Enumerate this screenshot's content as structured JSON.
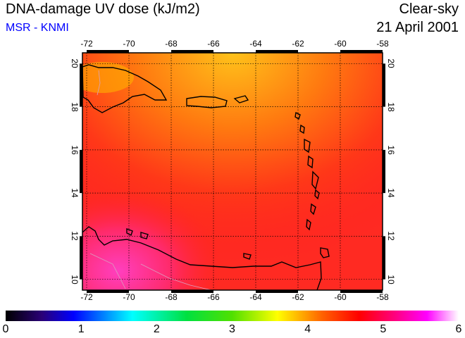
{
  "header": {
    "title": "DNA-damage UV dose (kJ/m2)",
    "subtitle": "MSR - KNMI",
    "condition": "Clear-sky",
    "date": "21 April 2001"
  },
  "map": {
    "lon_ticks": [
      "-72",
      "-70",
      "-68",
      "-66",
      "-64",
      "-62",
      "-60",
      "-58"
    ],
    "lat_ticks": [
      "10",
      "12",
      "14",
      "16",
      "18",
      "20"
    ]
  },
  "colorbar": {
    "range": [
      0,
      6
    ],
    "labels": [
      "0",
      "1",
      "2",
      "3",
      "4",
      "5",
      "6"
    ]
  }
}
